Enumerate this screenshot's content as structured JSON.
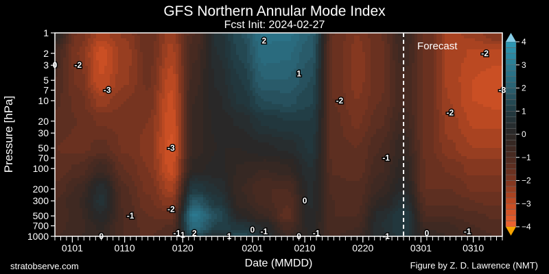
{
  "chart_data": {
    "type": "heatmap",
    "title": "GFS Northern Annular Mode Index",
    "subtitle": "Fcst Init: 2024-02-27",
    "xlabel": "Date (MMDD)",
    "ylabel": "Pressure [hPa]",
    "x_tick_labels": [
      "0101",
      "0110",
      "0120",
      "0201",
      "0210",
      "0220",
      "0301",
      "0310"
    ],
    "y_tick_labels": [
      "1",
      "2",
      "3",
      "5",
      "7",
      "10",
      "20",
      "30",
      "50",
      "70",
      "100",
      "200",
      "300",
      "500",
      "700",
      "1000"
    ],
    "y_scale": "log",
    "ylim": [
      1000,
      1
    ],
    "xlim": [
      "1229",
      "0315"
    ],
    "forecast_start": "0227",
    "forecast_label": "Forecast",
    "colorbar": {
      "ticks": [
        "4",
        "3",
        "2",
        "1",
        "0",
        "−1",
        "−2",
        "−3",
        "−4"
      ],
      "range": [
        -4,
        4
      ],
      "step": 0.25,
      "extend": "both"
    },
    "colors": {
      "pos_max": "#2e9ab6",
      "pos_mid": "#2a6070",
      "pos_low": "#213940",
      "zero": "#2a2624",
      "neg_low": "#4b2b21",
      "neg_mid": "#7c3520",
      "neg_high": "#c44c22",
      "neg_max": "#f06532",
      "over": "#86cde6",
      "under": "#f5a200"
    },
    "grid": false,
    "levels": [
      1,
      2,
      5,
      10,
      20,
      50,
      100,
      200,
      300,
      500,
      700,
      1000
    ],
    "dates": [
      "1229",
      "0102",
      "0106",
      "0110",
      "0114",
      "0118",
      "0122",
      "0126",
      "0130",
      "0203",
      "0207",
      "0211",
      "0215",
      "0219",
      "0223",
      "0227",
      "0302",
      "0306",
      "0310",
      "0314"
    ],
    "values": [
      [
        0.0,
        -0.8,
        -1.0,
        -1.2,
        -1.3,
        -1.5,
        -1.4,
        -1.2,
        -1.0,
        -1.0,
        -0.9,
        -0.8
      ],
      [
        -1.8,
        -2.0,
        -1.8,
        -1.6,
        -1.5,
        -1.6,
        -1.2,
        -0.7,
        -0.5,
        -0.6,
        -0.6,
        -0.5
      ],
      [
        -2.6,
        -3.1,
        -3.0,
        -2.4,
        -1.8,
        -1.4,
        -0.6,
        0.4,
        0.6,
        0.2,
        -0.2,
        -0.3
      ],
      [
        -2.2,
        -2.4,
        -2.3,
        -2.0,
        -1.8,
        -1.8,
        -1.5,
        -1.2,
        -1.1,
        -1.0,
        -1.0,
        -1.0
      ],
      [
        -1.5,
        -1.6,
        -1.7,
        -1.8,
        -2.0,
        -2.1,
        -2.0,
        -1.8,
        -1.7,
        -1.5,
        -1.4,
        -1.3
      ],
      [
        -2.4,
        -2.6,
        -2.9,
        -3.1,
        -3.2,
        -3.3,
        -3.1,
        -2.6,
        -2.2,
        -1.6,
        -1.2,
        -1.0
      ],
      [
        -1.0,
        -0.8,
        -0.6,
        -0.5,
        -0.4,
        -0.4,
        -0.1,
        1.0,
        1.8,
        2.8,
        2.4,
        1.5
      ],
      [
        0.6,
        0.5,
        0.3,
        0.2,
        0.1,
        0.0,
        0.1,
        0.5,
        0.9,
        1.5,
        1.2,
        0.5
      ],
      [
        1.5,
        1.3,
        1.0,
        0.8,
        0.3,
        0.0,
        -0.3,
        -0.5,
        -0.4,
        0.0,
        0.8,
        1.5
      ],
      [
        2.6,
        2.4,
        2.0,
        1.5,
        0.8,
        0.2,
        -0.5,
        -1.0,
        -0.9,
        -0.5,
        0.2,
        0.6
      ],
      [
        2.6,
        2.3,
        2.0,
        1.6,
        1.0,
        0.3,
        -0.3,
        -1.0,
        -1.2,
        -1.4,
        -0.9,
        -0.5
      ],
      [
        2.0,
        1.8,
        1.5,
        1.3,
        1.0,
        0.8,
        0.5,
        0.3,
        0.3,
        0.2,
        0.1,
        0.0
      ],
      [
        -1.5,
        -1.6,
        -1.6,
        -1.5,
        -1.4,
        -1.4,
        -1.3,
        -1.1,
        -1.0,
        -1.0,
        -1.0,
        -0.8
      ],
      [
        -2.0,
        -2.1,
        -2.1,
        -2.0,
        -1.8,
        -1.5,
        -1.4,
        -1.2,
        -1.1,
        -1.0,
        -0.8,
        -0.5
      ],
      [
        -1.5,
        -1.6,
        -1.6,
        -1.5,
        -1.3,
        -1.0,
        -0.8,
        -0.5,
        -0.2,
        0.4,
        0.5,
        0.4
      ],
      [
        -0.4,
        -0.6,
        -0.8,
        -0.8,
        -0.6,
        -0.3,
        -0.1,
        0.2,
        0.6,
        1.0,
        1.0,
        0.9
      ],
      [
        -1.6,
        -1.6,
        -1.6,
        -1.6,
        -1.6,
        -1.6,
        -1.5,
        -1.5,
        -1.3,
        -1.0,
        -0.6,
        -0.3
      ],
      [
        -2.6,
        -2.6,
        -2.6,
        -2.5,
        -2.4,
        -2.2,
        -1.8,
        -1.5,
        -1.3,
        -1.0,
        -0.7,
        -0.5
      ],
      [
        -2.4,
        -2.8,
        -3.0,
        -3.0,
        -2.8,
        -2.5,
        -2.1,
        -1.8,
        -1.5,
        -1.2,
        -1.0,
        -0.9
      ],
      [
        -2.0,
        -2.8,
        -3.2,
        -3.1,
        -2.8,
        -2.5,
        -2.1,
        -1.8,
        -1.6,
        -1.3,
        -1.1,
        -1.0
      ]
    ],
    "contour_labels": [
      {
        "text": "0",
        "date": "1229",
        "p": 3
      },
      {
        "text": "-2",
        "date": "0102",
        "p": 3
      },
      {
        "text": "-3",
        "date": "0107",
        "p": 7
      },
      {
        "text": "-3",
        "date": "0118",
        "p": 50
      },
      {
        "text": "-2",
        "date": "0118",
        "p": 400
      },
      {
        "text": "0",
        "date": "0106",
        "p": 1000
      },
      {
        "text": "-1",
        "date": "0111",
        "p": 500
      },
      {
        "text": "-1",
        "date": "0119",
        "p": 900
      },
      {
        "text": "1",
        "date": "0120",
        "p": 950
      },
      {
        "text": "2",
        "date": "0122",
        "p": 900
      },
      {
        "text": "1",
        "date": "0128",
        "p": 1000
      },
      {
        "text": "0",
        "date": "0201",
        "p": 800
      },
      {
        "text": "-1",
        "date": "0203",
        "p": 850
      },
      {
        "text": "2",
        "date": "0203",
        "p": 1.3
      },
      {
        "text": "1",
        "date": "0209",
        "p": 4
      },
      {
        "text": "0",
        "date": "0210",
        "p": 300
      },
      {
        "text": "0",
        "date": "0209",
        "p": 1000
      },
      {
        "text": "-1",
        "date": "0212",
        "p": 900
      },
      {
        "text": "-2",
        "date": "0216",
        "p": 10
      },
      {
        "text": "-1",
        "date": "0224",
        "p": 70
      },
      {
        "text": "-1",
        "date": "0224",
        "p": 1000
      },
      {
        "text": "0",
        "date": "0302",
        "p": 900
      },
      {
        "text": "-2",
        "date": "0306",
        "p": 15
      },
      {
        "text": "-1",
        "date": "0309",
        "p": 850
      },
      {
        "text": "-2",
        "date": "0312",
        "p": 2
      },
      {
        "text": "-3",
        "date": "0315",
        "p": 7
      }
    ]
  },
  "footer": {
    "left": "stratobserve.com",
    "right": "Figure by Z. D. Lawrence (NMT)"
  }
}
